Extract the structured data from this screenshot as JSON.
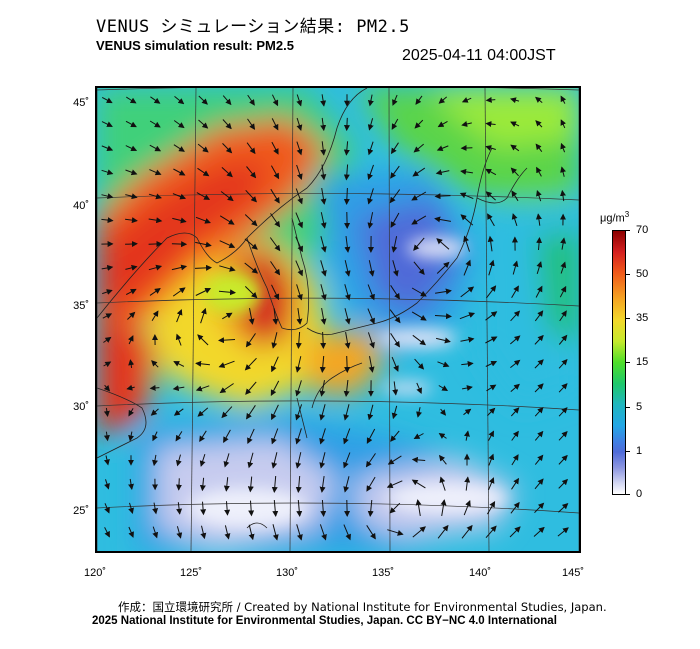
{
  "header": {
    "title_jp": "VENUS シミュレーション結果: PM2.5",
    "title_en": "VENUS simulation result: PM2.5",
    "timestamp": "2025-04-11 04:00JST"
  },
  "map": {
    "latitude_labels": [
      "45˚",
      "40˚",
      "35˚",
      "30˚",
      "25˚"
    ],
    "longitude_labels": [
      "120˚",
      "125˚",
      "130˚",
      "135˚",
      "140˚",
      "145˚"
    ],
    "variable": "PM2.5",
    "layers": [
      "concentration-field",
      "wind-vectors",
      "coastlines",
      "graticule"
    ]
  },
  "colorbar": {
    "unit_base": "μg/m",
    "unit_exp": "3",
    "ticks": [
      "70",
      "50",
      "35",
      "15",
      "5",
      "1",
      "0"
    ],
    "colors": {
      "high": "#d42020",
      "mid_high": "#f5a623",
      "mid": "#4ede2a",
      "low_mid": "#23a7e6",
      "low": "#4f6bd8",
      "zero": "#ffffff"
    }
  },
  "footer": {
    "credit_jp": "作成：国立環境研究所 / Created by National Institute for Environmental Studies, Japan.",
    "copyright": "2025 National Institute for Environmental Studies, Japan. CC BY−NC 4.0 International"
  }
}
